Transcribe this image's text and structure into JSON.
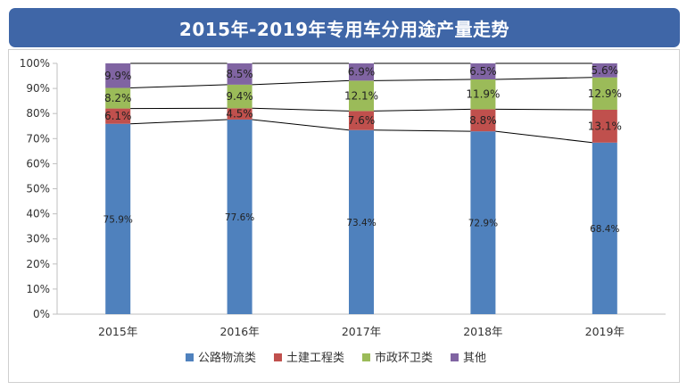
{
  "title": "2015年-2019年专用车分用途产量走势",
  "chart_data": {
    "type": "bar",
    "stacked": true,
    "categories": [
      "2015年",
      "2016年",
      "2017年",
      "2018年",
      "2019年"
    ],
    "y_ticks": [
      "0%",
      "10%",
      "20%",
      "30%",
      "40%",
      "50%",
      "60%",
      "70%",
      "80%",
      "90%",
      "100%"
    ],
    "ylim": [
      0,
      100
    ],
    "grid": false,
    "legend_position": "bottom",
    "series": [
      {
        "name": "公路物流类",
        "color": "#4f81bd",
        "values": [
          75.9,
          77.6,
          73.4,
          72.9,
          68.4
        ],
        "labels": [
          "75.9%",
          "77.6%",
          "73.4%",
          "72.9%",
          "68.4%"
        ]
      },
      {
        "name": "土建工程类",
        "color": "#c0504d",
        "values": [
          6.1,
          4.5,
          7.6,
          8.8,
          13.1
        ],
        "labels": [
          "6.1%",
          "4.5%",
          "7.6%",
          "8.8%",
          "13.1%"
        ]
      },
      {
        "name": "市政环卫类",
        "color": "#9bbb59",
        "values": [
          8.2,
          9.4,
          12.1,
          11.9,
          12.9
        ],
        "labels": [
          "8.2%",
          "9.4%",
          "12.1%",
          "11.9%",
          "12.9%"
        ]
      },
      {
        "name": "其他",
        "color": "#8064a2",
        "values": [
          9.9,
          8.5,
          6.9,
          6.5,
          5.6
        ],
        "labels": [
          "9.9%",
          "8.5%",
          "6.9%",
          "6.5%",
          "5.6%"
        ]
      }
    ]
  }
}
